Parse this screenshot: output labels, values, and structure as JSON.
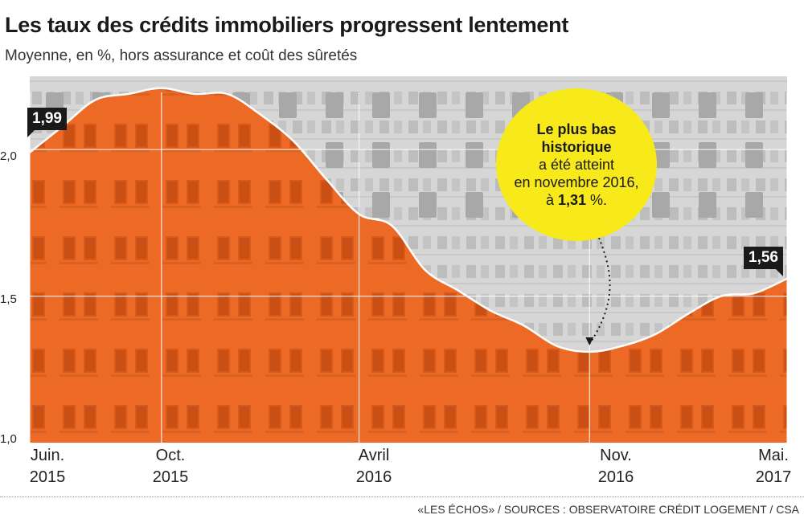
{
  "header": {
    "title": "Les taux des crédits immobiliers progressent lentement",
    "subtitle": "Moyenne, en %, hors assurance et coût des sûretés"
  },
  "chart_data": {
    "type": "area",
    "y_ticks": [
      "2,0",
      "1,5",
      "1,0"
    ],
    "y_tick_values": [
      2.0,
      1.5,
      1.0
    ],
    "ylim": [
      1.0,
      2.25
    ],
    "x_range": [
      "2015-06",
      "2017-05"
    ],
    "x_ticks": [
      {
        "date": "2015-06",
        "line1": "Juin.",
        "line2": "2015"
      },
      {
        "date": "2015-10",
        "line1": "Oct.",
        "line2": "2015"
      },
      {
        "date": "2016-04",
        "line1": "Avril",
        "line2": "2016"
      },
      {
        "date": "2016-11",
        "line1": "Nov.",
        "line2": "2016"
      },
      {
        "date": "2017-05",
        "line1": "Mai.",
        "line2": "2017"
      }
    ],
    "series": [
      {
        "points": [
          [
            "2015-06",
            1.99
          ],
          [
            "2015-07",
            2.08
          ],
          [
            "2015-08",
            2.17
          ],
          [
            "2015-09",
            2.19
          ],
          [
            "2015-10",
            2.21
          ],
          [
            "2015-11",
            2.19
          ],
          [
            "2015-12",
            2.19
          ],
          [
            "2016-01",
            2.12
          ],
          [
            "2016-02",
            2.03
          ],
          [
            "2016-03",
            1.9
          ],
          [
            "2016-04",
            1.78
          ],
          [
            "2016-05",
            1.74
          ],
          [
            "2016-06",
            1.59
          ],
          [
            "2016-07",
            1.52
          ],
          [
            "2016-08",
            1.45
          ],
          [
            "2016-09",
            1.4
          ],
          [
            "2016-10",
            1.33
          ],
          [
            "2016-11",
            1.31
          ],
          [
            "2016-12",
            1.33
          ],
          [
            "2017-01",
            1.37
          ],
          [
            "2017-02",
            1.44
          ],
          [
            "2017-03",
            1.5
          ],
          [
            "2017-04",
            1.51
          ],
          [
            "2017-05",
            1.56
          ]
        ]
      }
    ],
    "value_labels": [
      {
        "date": "2015-06",
        "text": "1,99"
      },
      {
        "date": "2017-05",
        "text": "1,56"
      }
    ],
    "annotation": {
      "bold_lines": [
        "Le plus bas",
        "historique"
      ],
      "lines": [
        "a été atteint",
        "en novembre 2016,"
      ],
      "prefix": "à ",
      "value": "1,31",
      "suffix": " %.",
      "points_to": "2016-11"
    },
    "colors": {
      "area": "#ec6a26",
      "photo_bg": "#d2d2d2",
      "line": "#ffffff",
      "callout": "#f7e91a",
      "badge": "#1a1a1a"
    },
    "grid": true
  },
  "footer": {
    "source": "«LES ÉCHOS» / SOURCES : OBSERVATOIRE CRÉDIT LOGEMENT / CSA"
  }
}
